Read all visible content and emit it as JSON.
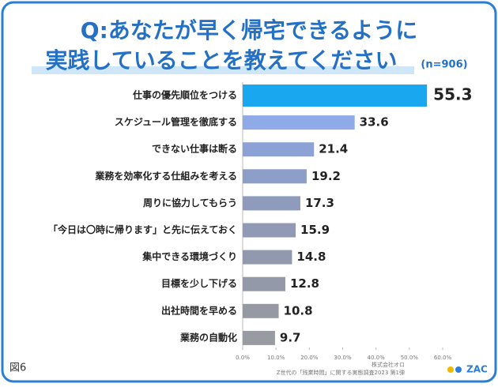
{
  "chart_data": {
    "type": "barh",
    "title": [
      "Q:あなたが早く帰宅できるように",
      "実践していることを教えてください"
    ],
    "subtitle": "(n=906)",
    "categories": [
      "仕事の優先順位をつける",
      "スケジュール管理を徹底する",
      "できない仕事は断る",
      "業務を効率化する仕組みを考える",
      "周りに協力してもらう",
      "「今日は〇時に帰ります」と先に伝えておく",
      "集中できる環境づくり",
      "目標を少し下げる",
      "出社時間を早める",
      "業務の自動化"
    ],
    "values": [
      55.3,
      33.6,
      21.4,
      19.2,
      17.3,
      15.9,
      14.8,
      12.8,
      10.8,
      9.7
    ],
    "colors": [
      "#19a7f0",
      "#8faae6",
      "#8ca2d6",
      "#8d9ec8",
      "#8e9bbd",
      "#909ab4",
      "#9199ae",
      "#9399a8",
      "#9599a3",
      "#989ba2"
    ],
    "xlim": [
      0,
      60
    ],
    "xticks": [
      {
        "value": 0,
        "label": "0.0%"
      },
      {
        "value": 10,
        "label": "10.0%"
      },
      {
        "value": 20,
        "label": "20.0%"
      },
      {
        "value": 30,
        "label": "30.0%"
      },
      {
        "value": 40,
        "label": "40.0%"
      },
      {
        "value": 50,
        "label": "50.0%"
      },
      {
        "value": 60,
        "label": "60.0%"
      }
    ],
    "figure_label": "図6",
    "notes": [
      "株式会社オロ",
      "Z世代の「残業時間」に関する実態調査2023 第1弾"
    ],
    "logo": "ZAC"
  }
}
